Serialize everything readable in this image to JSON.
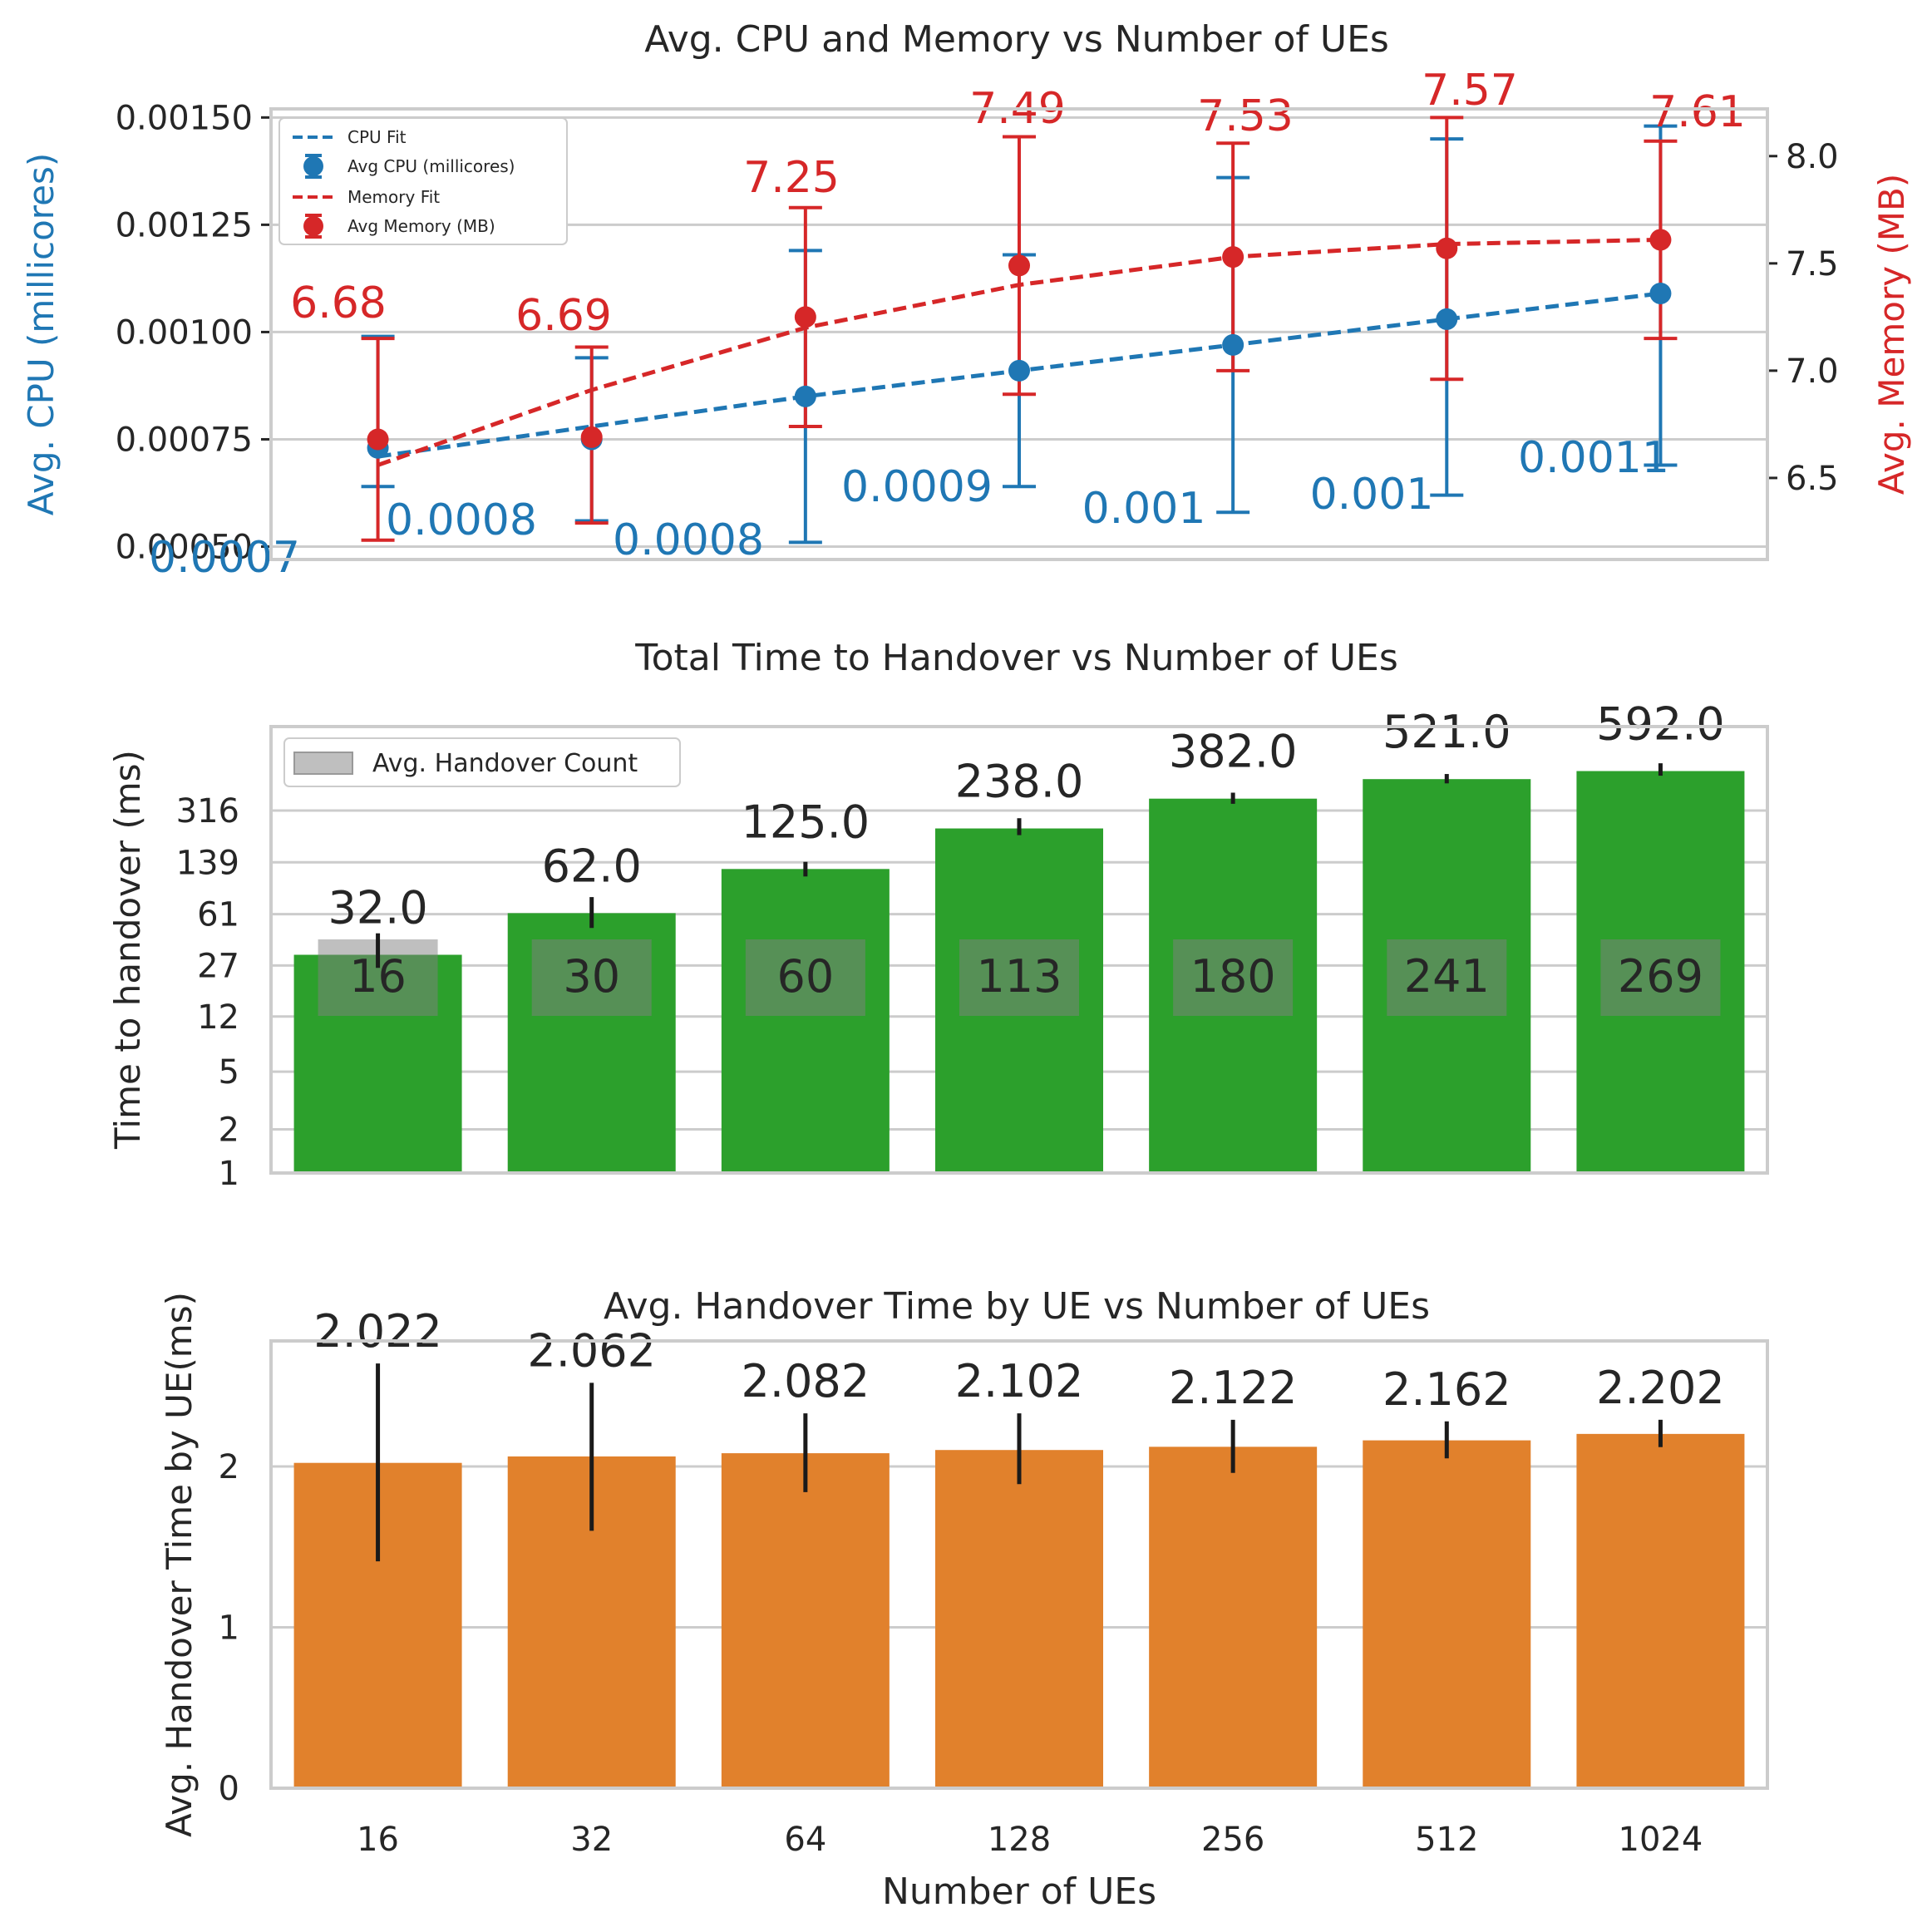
{
  "chart_data": [
    {
      "type": "line",
      "title": "Avg. CPU and Memory vs Number of UEs",
      "x": [
        16,
        32,
        64,
        128,
        256,
        512,
        1024
      ],
      "ylabel": "Avg. CPU (millicores)",
      "y2label": "Avg. Memory (MB)",
      "ylim": [
        0.00047,
        0.00152
      ],
      "y2lim": [
        6.12,
        8.22
      ],
      "yticks": [
        "0.00050",
        "0.00075",
        "0.00100",
        "0.00125",
        "0.00150"
      ],
      "y2ticks": [
        "6.5",
        "7.0",
        "7.5",
        "8.0"
      ],
      "legend_position": "upper-left",
      "legend": [
        "CPU Fit",
        "Avg CPU (millicores)",
        "Memory Fit",
        "Avg Memory (MB)"
      ],
      "series": [
        {
          "name": "Avg CPU (millicores)",
          "axis": "left",
          "color": "#1f77b4",
          "values": [
            0.00073,
            0.00075,
            0.00085,
            0.00091,
            0.00097,
            0.00103,
            0.00109
          ],
          "err_low": [
            0.00064,
            0.00056,
            0.00051,
            0.00064,
            0.00058,
            0.00062,
            0.00069
          ],
          "err_high": [
            0.00099,
            0.00094,
            0.00119,
            0.00118,
            0.00136,
            0.00145,
            0.00148
          ],
          "labels": [
            "0.0007",
            "0.0008",
            "0.0008",
            "0.0009",
            "0.001",
            "0.001",
            "0.0011"
          ]
        },
        {
          "name": "CPU Fit",
          "axis": "left",
          "color": "#1f77b4",
          "style": "dashed",
          "values": [
            0.00071,
            0.00078,
            0.00085,
            0.00091,
            0.00097,
            0.00103,
            0.00109
          ]
        },
        {
          "name": "Avg Memory (MB)",
          "axis": "right",
          "color": "#d62728",
          "values": [
            6.68,
            6.69,
            7.25,
            7.49,
            7.53,
            7.57,
            7.61
          ],
          "err_low": [
            6.21,
            6.29,
            6.74,
            6.89,
            7.0,
            6.96,
            7.15
          ],
          "err_high": [
            7.15,
            7.11,
            7.76,
            8.09,
            8.06,
            8.18,
            8.07
          ],
          "labels": [
            "6.68",
            "6.69",
            "7.25",
            "7.49",
            "7.53",
            "7.57",
            "7.61"
          ]
        },
        {
          "name": "Memory Fit",
          "axis": "right",
          "color": "#d62728",
          "style": "dashed",
          "values": [
            6.56,
            6.91,
            7.2,
            7.4,
            7.53,
            7.59,
            7.61
          ]
        }
      ]
    },
    {
      "type": "bar",
      "title": "Total Time to Handover vs Number of UEs",
      "categories": [
        "16",
        "32",
        "64",
        "128",
        "256",
        "512",
        "1024"
      ],
      "ylabel": "Time to handover (ms)",
      "yscale": "log",
      "yticks": [
        "1",
        "2",
        "5",
        "12",
        "27",
        "61",
        "139",
        "316"
      ],
      "ylim": [
        1,
        1200
      ],
      "legend_position": "upper-left",
      "legend": [
        "Avg. Handover Count"
      ],
      "series": [
        {
          "name": "Total Time to Handover",
          "color": "#2ca02c",
          "values": [
            32.0,
            62.0,
            125.0,
            238.0,
            382.0,
            521.0,
            592.0
          ],
          "err_low": [
            26,
            49,
            111,
            214,
            352,
            487,
            550
          ],
          "err_high": [
            45,
            80,
            140,
            280,
            420,
            565,
            670
          ],
          "labels": [
            "32.0",
            "62.0",
            "125.0",
            "238.0",
            "382.0",
            "521.0",
            "592.0"
          ]
        },
        {
          "name": "Avg. Handover Count",
          "color": "#808080",
          "labels": [
            "16",
            "30",
            "60",
            "113",
            "180",
            "241",
            "269"
          ]
        }
      ]
    },
    {
      "type": "bar",
      "title": "Avg. Handover Time by UE vs Number of UEs",
      "categories": [
        "16",
        "32",
        "64",
        "128",
        "256",
        "512",
        "1024"
      ],
      "xlabel": "Number of UEs",
      "ylabel": "Avg. Handover Time by UE(ms)",
      "ylim": [
        0,
        2.78
      ],
      "yticks": [
        "0",
        "1",
        "2"
      ],
      "series": [
        {
          "name": "Avg. Handover Time by UE",
          "color": "#e1812c",
          "values": [
            2.022,
            2.062,
            2.082,
            2.102,
            2.122,
            2.162,
            2.202
          ],
          "err_low": [
            1.41,
            1.6,
            1.84,
            1.89,
            1.96,
            2.05,
            2.12
          ],
          "err_high": [
            2.64,
            2.52,
            2.33,
            2.33,
            2.29,
            2.28,
            2.29
          ],
          "labels": [
            "2.022",
            "2.062",
            "2.082",
            "2.102",
            "2.122",
            "2.162",
            "2.202"
          ]
        }
      ]
    }
  ]
}
